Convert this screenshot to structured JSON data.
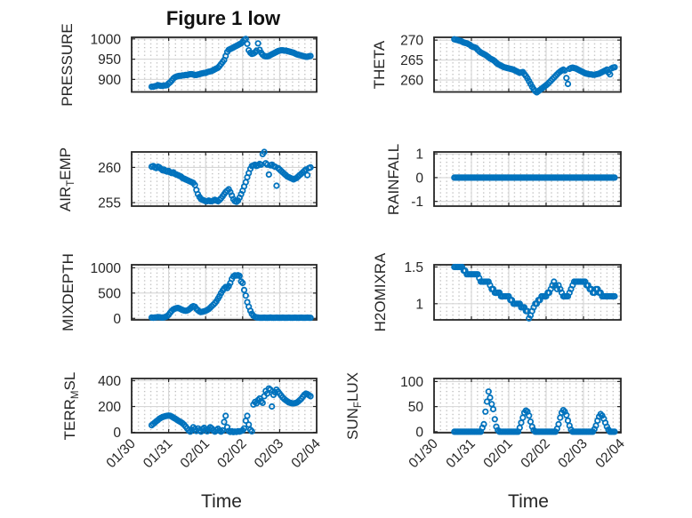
{
  "title": "Figure 1 low",
  "xlabel": "Time",
  "style": {
    "marker_color": "#0072BD",
    "axis_color": "#262626",
    "text_color": "#262626",
    "major_grid_color": "#d6d6d6",
    "minor_dot_color": "#b5b5b5",
    "background": "#ffffff"
  },
  "x_axis": {
    "ticklabels": [
      "01/30",
      "01/31",
      "02/01",
      "02/02",
      "02/03",
      "02/04"
    ],
    "lim_days": [
      0,
      5
    ],
    "label": "Time"
  },
  "hours_start": 13,
  "chart_data": [
    {
      "name": "PRESSURE",
      "type": "scatter",
      "ylabel_parts": [
        {
          "t": "PRESSURE"
        }
      ],
      "yticks": [
        900,
        950,
        1000
      ],
      "ylim": [
        869,
        1004
      ],
      "values": [
        882,
        882,
        883,
        884,
        886,
        885,
        884,
        884,
        885,
        885,
        886,
        890,
        893,
        897,
        902,
        905,
        907,
        908,
        909,
        909,
        910,
        910,
        911,
        911,
        912,
        913,
        913,
        912,
        911,
        911,
        912,
        913,
        914,
        915,
        916,
        916,
        918,
        919,
        920,
        921,
        923,
        925,
        927,
        929,
        933,
        938,
        943,
        948,
        958,
        968,
        973,
        975,
        977,
        979,
        981,
        983,
        985,
        987,
        989,
        993,
        997,
        1000,
        988,
        972,
        966,
        963,
        964,
        967,
        971,
        989,
        973,
        966,
        961,
        958,
        957,
        957,
        958,
        960,
        962,
        964,
        966,
        968,
        970,
        971,
        972,
        972,
        971,
        971,
        970,
        969,
        968,
        967,
        966,
        964,
        962,
        961,
        960,
        959,
        958,
        957,
        956,
        956,
        957,
        958
      ]
    },
    {
      "name": "THETA",
      "type": "scatter",
      "ylabel_parts": [
        {
          "t": "THETA"
        }
      ],
      "yticks": [
        260,
        265,
        270
      ],
      "ylim": [
        257.0,
        270.7
      ],
      "values": [
        270.2,
        270.1,
        270.0,
        269.9,
        269.8,
        269.6,
        269.4,
        269.3,
        269.2,
        269.0,
        268.8,
        268.5,
        268.3,
        268.2,
        268.0,
        267.6,
        267.2,
        266.9,
        266.7,
        266.5,
        266.3,
        266.0,
        265.7,
        265.4,
        265.2,
        265.0,
        264.7,
        264.3,
        264.0,
        263.8,
        263.6,
        263.4,
        263.2,
        263.1,
        263.0,
        262.9,
        262.8,
        262.7,
        262.6,
        262.4,
        262.2,
        262.0,
        261.8,
        261.9,
        262.0,
        261.5,
        261.0,
        260.4,
        259.7,
        259.0,
        258.3,
        257.7,
        257.2,
        256.9,
        257.2,
        257.5,
        257.8,
        258.1,
        258.4,
        258.7,
        259.0,
        259.4,
        259.8,
        260.2,
        260.6,
        261.0,
        261.4,
        261.8,
        262.1,
        262.4,
        262.6,
        262.4,
        260.5,
        259.0,
        262.8,
        263.0,
        263.1,
        263.0,
        262.9,
        262.7,
        262.5,
        262.3,
        262.1,
        261.9,
        261.7,
        261.6,
        261.5,
        261.4,
        261.4,
        261.3,
        261.3,
        261.4,
        261.5,
        261.6,
        261.8,
        262.0,
        262.2,
        262.4,
        262.6,
        261.9,
        261.4,
        262.9,
        263.1,
        263.2
      ]
    },
    {
      "name": "AIR_TEMP",
      "type": "scatter",
      "ylabel_parts": [
        {
          "t": "AIR"
        },
        {
          "t": "T",
          "sub": true
        },
        {
          "t": "EMP"
        }
      ],
      "yticks": [
        255,
        260
      ],
      "ylim": [
        254.5,
        262.2
      ],
      "values": [
        260.1,
        260.2,
        260.0,
        259.9,
        260.1,
        260.0,
        259.8,
        259.6,
        259.7,
        259.5,
        259.4,
        259.5,
        259.3,
        259.2,
        259.3,
        259.1,
        259.0,
        258.9,
        258.8,
        258.7,
        258.5,
        258.4,
        258.3,
        258.2,
        258.1,
        258.0,
        257.9,
        257.8,
        257.5,
        256.8,
        256.2,
        255.8,
        255.5,
        255.4,
        255.3,
        255.2,
        255.2,
        255.3,
        255.2,
        255.2,
        255.3,
        255.4,
        255.3,
        255.2,
        255.4,
        255.6,
        255.9,
        256.2,
        256.5,
        256.7,
        256.9,
        256.5,
        256.0,
        255.5,
        255.2,
        255.1,
        255.3,
        255.7,
        256.2,
        256.7,
        257.3,
        257.9,
        258.6,
        259.2,
        259.8,
        260.2,
        260.3,
        260.4,
        260.2,
        260.3,
        260.5,
        260.4,
        261.9,
        262.2,
        260.6,
        260.4,
        259.0,
        260.3,
        260.4,
        260.2,
        260.1,
        257.4,
        259.9,
        259.7,
        259.5,
        259.3,
        259.1,
        258.9,
        258.7,
        258.6,
        258.5,
        258.4,
        258.3,
        258.4,
        258.5,
        258.7,
        258.9,
        259.1,
        259.3,
        259.5,
        259.7,
        258.9,
        259.9,
        260.0
      ]
    },
    {
      "name": "RAINFALL",
      "type": "scatter",
      "ylabel_parts": [
        {
          "t": "RAINFALL"
        }
      ],
      "yticks": [
        -1,
        0,
        1
      ],
      "ylim": [
        -1.2,
        1.08
      ],
      "values": [
        0,
        0,
        0,
        0,
        0,
        0,
        0,
        0,
        0,
        0,
        0,
        0,
        0,
        0,
        0,
        0,
        0,
        0,
        0,
        0,
        0,
        0,
        0,
        0,
        0,
        0,
        0,
        0,
        0,
        0,
        0,
        0,
        0,
        0,
        0,
        0,
        0,
        0,
        0,
        0,
        0,
        0,
        0,
        0,
        0,
        0,
        0,
        0,
        0,
        0,
        0,
        0,
        0,
        0,
        0,
        0,
        0,
        0,
        0,
        0,
        0,
        0,
        0,
        0,
        0,
        0,
        0,
        0,
        0,
        0,
        0,
        0,
        0,
        0,
        0,
        0,
        0,
        0,
        0,
        0,
        0,
        0,
        0,
        0,
        0,
        0,
        0,
        0,
        0,
        0,
        0,
        0,
        0,
        0,
        0,
        0,
        0,
        0,
        0,
        0,
        0,
        0,
        0,
        0
      ]
    },
    {
      "name": "MIXDEPTH",
      "type": "scatter",
      "ylabel_parts": [
        {
          "t": "MIXDEPTH"
        }
      ],
      "yticks": [
        0,
        500,
        1000
      ],
      "ylim": [
        -30,
        1060
      ],
      "values": [
        15,
        12,
        18,
        20,
        25,
        22,
        18,
        15,
        20,
        30,
        45,
        70,
        110,
        150,
        175,
        190,
        200,
        205,
        195,
        180,
        165,
        155,
        150,
        155,
        170,
        195,
        225,
        240,
        230,
        190,
        160,
        135,
        125,
        130,
        140,
        150,
        165,
        185,
        210,
        240,
        270,
        300,
        340,
        390,
        440,
        500,
        550,
        590,
        620,
        600,
        640,
        700,
        780,
        830,
        850,
        845,
        855,
        840,
        730,
        700,
        560,
        450,
        320,
        230,
        150,
        90,
        50,
        30,
        20,
        15,
        12,
        10,
        12,
        14,
        12,
        10,
        12,
        15,
        12,
        10,
        12,
        14,
        12,
        10,
        12,
        14,
        12,
        10,
        12,
        14,
        12,
        10,
        12,
        14,
        12,
        10,
        12,
        14,
        12,
        10,
        12,
        14,
        12,
        10
      ]
    },
    {
      "name": "H2OMIXRA",
      "type": "scatter",
      "ylabel_parts": [
        {
          "t": "H2OMIXRA"
        }
      ],
      "yticks": [
        1,
        1.5
      ],
      "ylim": [
        0.78,
        1.53
      ],
      "values": [
        1.5,
        1.5,
        1.5,
        1.5,
        1.5,
        1.5,
        1.45,
        1.45,
        1.4,
        1.4,
        1.4,
        1.4,
        1.4,
        1.4,
        1.4,
        1.4,
        1.35,
        1.3,
        1.3,
        1.3,
        1.3,
        1.3,
        1.3,
        1.25,
        1.2,
        1.2,
        1.15,
        1.15,
        1.15,
        1.15,
        1.1,
        1.1,
        1.1,
        1.1,
        1.1,
        1.1,
        1.05,
        1.05,
        1.0,
        1.0,
        1.0,
        1.0,
        1.0,
        0.95,
        0.95,
        0.95,
        0.9,
        0.9,
        0.8,
        0.84,
        0.9,
        0.95,
        1.0,
        1.0,
        1.05,
        1.05,
        1.1,
        1.1,
        1.1,
        1.1,
        1.15,
        1.15,
        1.2,
        1.25,
        1.3,
        1.25,
        1.2,
        1.25,
        1.2,
        1.15,
        1.1,
        1.1,
        1.1,
        1.1,
        1.15,
        1.2,
        1.25,
        1.3,
        1.3,
        1.3,
        1.3,
        1.3,
        1.3,
        1.3,
        1.3,
        1.25,
        1.25,
        1.2,
        1.2,
        1.15,
        1.15,
        1.2,
        1.2,
        1.15,
        1.15,
        1.1,
        1.1,
        1.1,
        1.1,
        1.1,
        1.1,
        1.1,
        1.1,
        1.1
      ]
    },
    {
      "name": "TERR_MSL",
      "type": "scatter",
      "ylabel_parts": [
        {
          "t": "TERR"
        },
        {
          "t": "M",
          "sub": true
        },
        {
          "t": "SL"
        }
      ],
      "yticks": [
        0,
        200,
        400
      ],
      "ylim": [
        -3,
        417
      ],
      "values": [
        55,
        65,
        75,
        85,
        95,
        105,
        112,
        118,
        122,
        126,
        128,
        130,
        128,
        122,
        115,
        108,
        100,
        92,
        85,
        78,
        70,
        60,
        45,
        30,
        15,
        5,
        20,
        40,
        25,
        10,
        30,
        15,
        5,
        25,
        35,
        20,
        8,
        25,
        40,
        30,
        15,
        5,
        18,
        28,
        12,
        5,
        15,
        80,
        128,
        40,
        10,
        3,
        8,
        2,
        6,
        3,
        8,
        5,
        10,
        15,
        30,
        90,
        128,
        60,
        20,
        8,
        215,
        235,
        225,
        250,
        262,
        240,
        228,
        280,
        320,
        300,
        340,
        330,
        200,
        290,
        310,
        330,
        315,
        300,
        285,
        270,
        258,
        248,
        240,
        232,
        228,
        225,
        224,
        226,
        230,
        238,
        248,
        260,
        275,
        290,
        300,
        296,
        288,
        280
      ]
    },
    {
      "name": "SUN_FLUX",
      "type": "scatter",
      "ylabel_parts": [
        {
          "t": "SUN"
        },
        {
          "t": "F",
          "sub": true
        },
        {
          "t": "LUX"
        }
      ],
      "yticks": [
        0,
        50,
        100
      ],
      "ylim": [
        -2,
        106
      ],
      "values": [
        0,
        0,
        0,
        0,
        0,
        0,
        0,
        0,
        0,
        0,
        0,
        0,
        0,
        0,
        0,
        0,
        0,
        0,
        8,
        15,
        40,
        60,
        80,
        68,
        55,
        45,
        25,
        10,
        3,
        0,
        0,
        0,
        0,
        0,
        0,
        0,
        0,
        0,
        0,
        0,
        0,
        0,
        8,
        18,
        28,
        38,
        42,
        40,
        32,
        20,
        10,
        3,
        0,
        0,
        0,
        0,
        0,
        0,
        0,
        0,
        0,
        0,
        0,
        0,
        0,
        0,
        6,
        15,
        28,
        38,
        43,
        40,
        33,
        22,
        12,
        4,
        0,
        0,
        0,
        0,
        0,
        0,
        0,
        0,
        0,
        0,
        0,
        0,
        0,
        0,
        5,
        12,
        22,
        30,
        35,
        32,
        26,
        18,
        10,
        4,
        0,
        0,
        0,
        0
      ]
    }
  ]
}
